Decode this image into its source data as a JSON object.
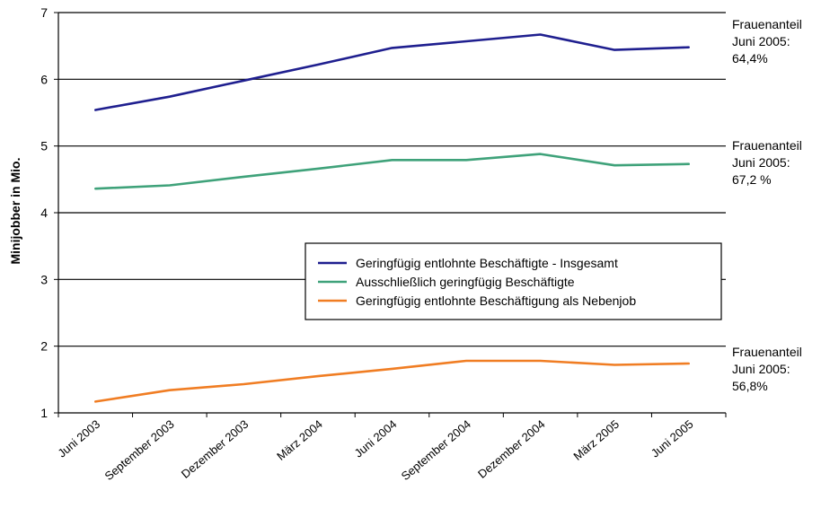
{
  "chart_data": {
    "type": "line",
    "title": "",
    "xlabel": "",
    "ylabel": "Minijobber in Mio.",
    "ylim": [
      1,
      7
    ],
    "yticks": [
      1,
      2,
      3,
      4,
      5,
      6,
      7
    ],
    "ytick_labels": [
      "1",
      "2",
      "3",
      "4",
      "5",
      "6",
      "7"
    ],
    "grid": true,
    "legend_position": "center-right",
    "categories": [
      "Juni 2003",
      "September 2003",
      "Dezember 2003",
      "März 2004",
      "Juni 2004",
      "September 2004",
      "Dezember 2004",
      "März 2005",
      "Juni 2005"
    ],
    "series": [
      {
        "name": "Geringfügig entlohnte Beschäftigte - Insgesamt",
        "color": "#1f1f8f",
        "values": [
          5.54,
          5.74,
          5.98,
          6.22,
          6.47,
          6.57,
          6.67,
          6.44,
          6.48
        ]
      },
      {
        "name": "Ausschließlich geringfügig Beschäftigte",
        "color": "#3fa27a",
        "values": [
          4.36,
          4.41,
          4.54,
          4.66,
          4.79,
          4.79,
          4.88,
          4.71,
          4.73
        ]
      },
      {
        "name": "Geringfügig entlohnte Beschäftigung als Nebenjob",
        "color": "#f07d23",
        "values": [
          1.17,
          1.34,
          1.43,
          1.55,
          1.66,
          1.78,
          1.78,
          1.72,
          1.74
        ]
      }
    ],
    "annotations": [
      {
        "lines": [
          "Frauenanteil",
          "Juni 2005:",
          "64,4%"
        ]
      },
      {
        "lines": [
          "Frauenanteil",
          "Juni 2005:",
          "67,2 %"
        ]
      },
      {
        "lines": [
          "Frauenanteil",
          "Juni 2005:",
          "56,8%"
        ]
      }
    ]
  }
}
